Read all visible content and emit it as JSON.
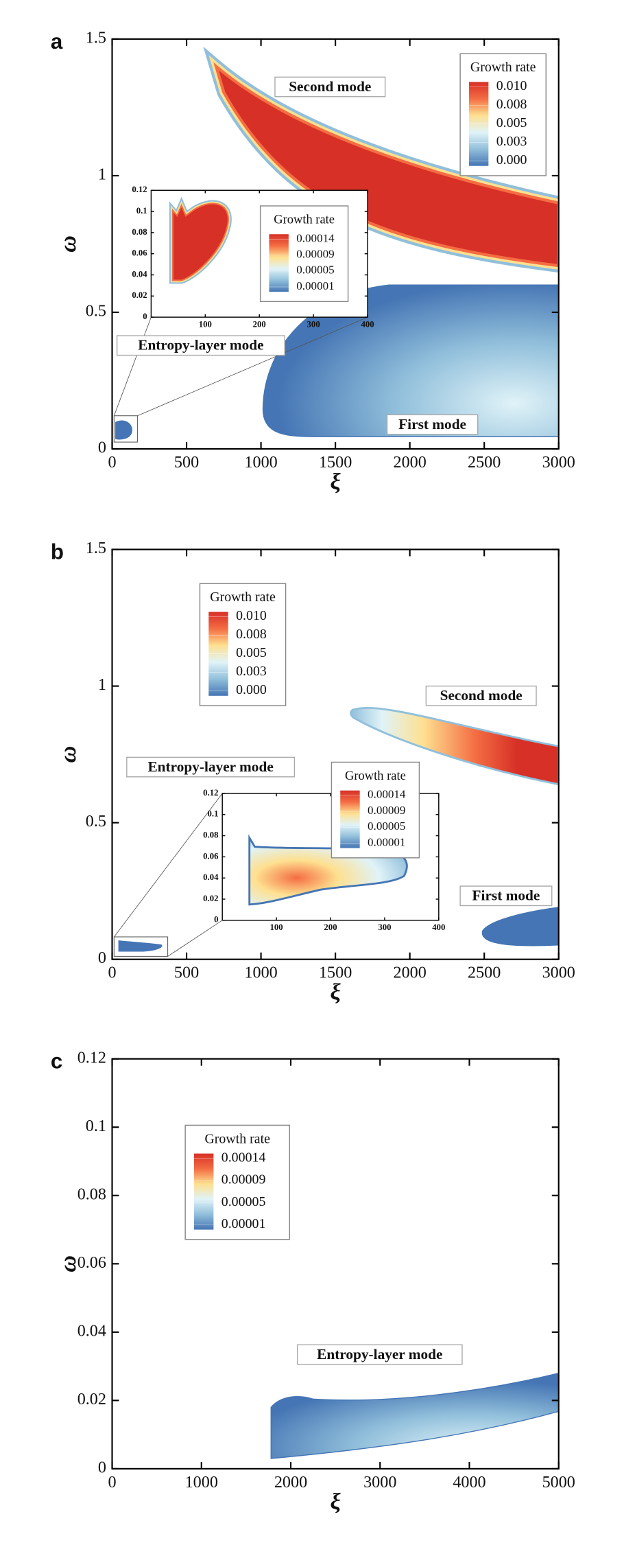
{
  "chart_data": [
    {
      "type": "contour",
      "panel": "a",
      "xlabel": "ξ",
      "ylabel": "ω",
      "xlim": [
        0,
        3000
      ],
      "ylim": [
        0,
        1.5
      ],
      "xticks": [
        0,
        500,
        1000,
        1500,
        2000,
        2500,
        3000
      ],
      "yticks": [
        0,
        0.5,
        1,
        1.5
      ],
      "colormap": [
        "#d73027",
        "#f46d43",
        "#fee090",
        "#e0f3f8",
        "#91bfdb",
        "#4575b4"
      ],
      "legend": {
        "title": "Growth rate",
        "levels": [
          {
            "value": 0.01,
            "label": "0.010"
          },
          0.008,
          0.005,
          0.003,
          {
            "value": 0,
            "label": "0.000"
          }
        ]
      },
      "annotations": [
        "Second mode",
        "First mode",
        "Entropy-layer mode"
      ],
      "inset": {
        "xlim": [
          0,
          400
        ],
        "ylim": [
          0,
          0.12
        ],
        "xticks": [
          100,
          200,
          300,
          400
        ],
        "yticks": [
          0,
          0.02,
          0.04,
          0.06,
          0.08,
          0.1,
          0.12
        ],
        "legend": {
          "title": "Growth rate",
          "levels": [
            0.00014,
            9e-05,
            5e-05,
            1e-05
          ]
        }
      }
    },
    {
      "type": "contour",
      "panel": "b",
      "xlabel": "ξ",
      "ylabel": "ω",
      "xlim": [
        0,
        3000
      ],
      "ylim": [
        0,
        1.5
      ],
      "xticks": [
        0,
        500,
        1000,
        1500,
        2000,
        2500,
        3000
      ],
      "yticks": [
        0,
        0.5,
        1,
        1.5
      ],
      "colormap": [
        "#d73027",
        "#f46d43",
        "#fee090",
        "#e0f3f8",
        "#91bfdb",
        "#4575b4"
      ],
      "legend": {
        "title": "Growth rate",
        "levels": [
          {
            "value": 0.01,
            "label": "0.010"
          },
          0.008,
          0.005,
          0.003,
          {
            "value": 0,
            "label": "0.000"
          }
        ]
      },
      "annotations": [
        "Second mode",
        "First mode",
        "Entropy-layer mode"
      ],
      "inset": {
        "xlim": [
          0,
          400
        ],
        "ylim": [
          0,
          0.12
        ],
        "xticks": [
          100,
          200,
          300,
          400
        ],
        "yticks": [
          0,
          0.02,
          0.04,
          0.06,
          0.08,
          0.1,
          0.12
        ],
        "legend": {
          "title": "Growth rate",
          "levels": [
            0.00014,
            9e-05,
            5e-05,
            1e-05
          ]
        }
      }
    },
    {
      "type": "contour",
      "panel": "c",
      "xlabel": "ξ",
      "ylabel": "ω",
      "xlim": [
        0,
        5000
      ],
      "ylim": [
        0,
        0.12
      ],
      "xticks": [
        0,
        1000,
        2000,
        3000,
        4000,
        5000
      ],
      "yticks": [
        0,
        0.02,
        0.04,
        0.06,
        0.08,
        0.1,
        0.12
      ],
      "colormap": [
        "#d73027",
        "#f46d43",
        "#fee090",
        "#e0f3f8",
        "#91bfdb",
        "#4575b4"
      ],
      "legend": {
        "title": "Growth rate",
        "levels": [
          0.00014,
          9e-05,
          5e-05,
          1e-05
        ]
      },
      "annotations": [
        "Entropy-layer mode"
      ]
    }
  ]
}
